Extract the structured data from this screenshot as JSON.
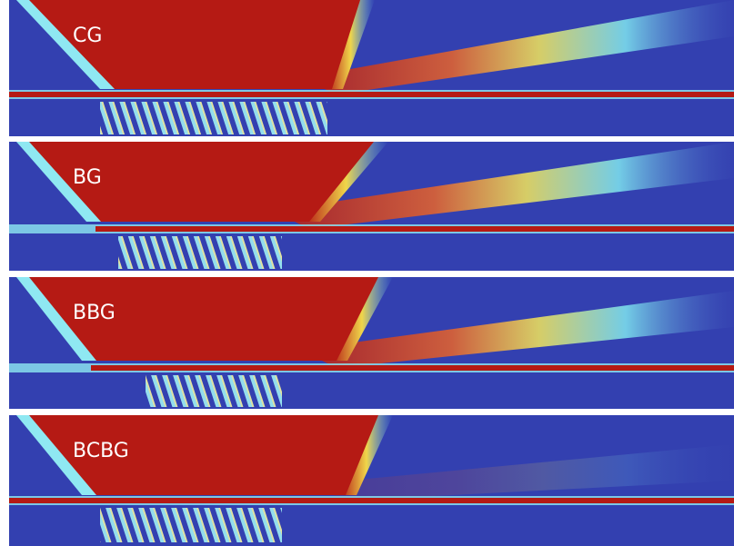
{
  "panels": [
    {
      "label": "CG"
    },
    {
      "label": "BG"
    },
    {
      "label": "BBG"
    },
    {
      "label": "BCBG"
    }
  ]
}
